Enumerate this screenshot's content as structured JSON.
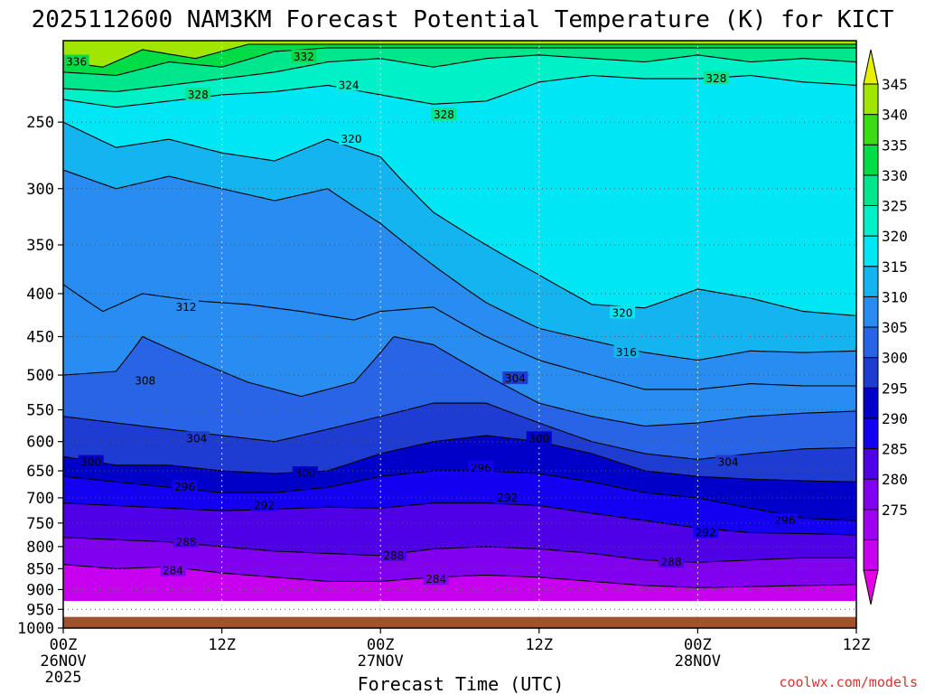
{
  "chart_data": {
    "type": "heatmap",
    "title": "2025112600 NAM3KM Forecast Potential Temperature (K) for KICT",
    "xlabel": "Forecast Time (UTC)",
    "ylabel": "",
    "credit": "coolwx.com/models",
    "x_ticks": [
      {
        "hour": 0,
        "lines": [
          "00Z",
          "26NOV",
          "2025"
        ]
      },
      {
        "hour": 12,
        "lines": [
          "12Z"
        ]
      },
      {
        "hour": 24,
        "lines": [
          "00Z",
          "27NOV"
        ]
      },
      {
        "hour": 36,
        "lines": [
          "12Z"
        ]
      },
      {
        "hour": 48,
        "lines": [
          "00Z",
          "28NOV"
        ]
      },
      {
        "hour": 60,
        "lines": [
          "12Z"
        ]
      }
    ],
    "xlim": [
      0,
      60
    ],
    "y_ticks": [
      250,
      300,
      350,
      400,
      450,
      500,
      550,
      600,
      650,
      700,
      750,
      800,
      850,
      900,
      950,
      1000
    ],
    "ylim": [
      200,
      1000
    ],
    "y_scale": "log-pressure",
    "colorbar_ticks": [
      345,
      340,
      335,
      330,
      325,
      320,
      315,
      310,
      305,
      300,
      295,
      290,
      285,
      280,
      275
    ],
    "colorbar_range": [
      270,
      350
    ],
    "colorbar_colors": [
      "#e600e6",
      "#c800f0",
      "#a000f0",
      "#8200f0",
      "#5000e6",
      "#1400f0",
      "#0000c8",
      "#1e3cd2",
      "#2864e6",
      "#288cf0",
      "#14b4f0",
      "#00e6f5",
      "#00f0c8",
      "#00e68c",
      "#00dc46",
      "#3cdc14",
      "#a0e600",
      "#e6f000"
    ],
    "contour_labels": [
      336,
      332,
      328,
      324,
      320,
      328,
      328,
      320,
      316,
      312,
      308,
      304,
      304,
      300,
      300,
      296,
      300,
      304,
      296,
      292,
      292,
      292,
      296,
      288,
      288,
      288,
      284,
      284
    ],
    "isotherms": [
      {
        "theta": 336,
        "points": [
          [
            0,
            212
          ],
          [
            3,
            215
          ],
          [
            6,
            205
          ],
          [
            10,
            210
          ],
          [
            14,
            202
          ]
        ]
      },
      {
        "theta": 332,
        "points": [
          [
            0,
            218
          ],
          [
            4,
            220
          ],
          [
            8,
            212
          ],
          [
            12,
            215
          ],
          [
            16,
            206
          ],
          [
            20,
            204
          ]
        ]
      },
      {
        "theta": 328,
        "points": [
          [
            0,
            228
          ],
          [
            4,
            230
          ],
          [
            8,
            226
          ],
          [
            12,
            222
          ],
          [
            16,
            218
          ],
          [
            20,
            212
          ],
          [
            24,
            210
          ],
          [
            28,
            215
          ],
          [
            32,
            210
          ],
          [
            36,
            208
          ],
          [
            40,
            210
          ],
          [
            44,
            212
          ],
          [
            48,
            208
          ],
          [
            52,
            212
          ],
          [
            56,
            210
          ],
          [
            60,
            212
          ]
        ]
      },
      {
        "theta": 324,
        "points": [
          [
            0,
            235
          ],
          [
            4,
            240
          ],
          [
            8,
            236
          ],
          [
            12,
            232
          ],
          [
            16,
            230
          ],
          [
            20,
            226
          ],
          [
            24,
            232
          ],
          [
            28,
            238
          ],
          [
            32,
            236
          ],
          [
            36,
            224
          ],
          [
            40,
            220
          ],
          [
            44,
            222
          ],
          [
            48,
            222
          ],
          [
            52,
            220
          ],
          [
            56,
            224
          ],
          [
            60,
            226
          ]
        ]
      },
      {
        "theta": 320,
        "points": [
          [
            0,
            250
          ],
          [
            4,
            268
          ],
          [
            8,
            262
          ],
          [
            12,
            272
          ],
          [
            16,
            278
          ],
          [
            20,
            262
          ],
          [
            24,
            275
          ],
          [
            28,
            320
          ],
          [
            32,
            350
          ],
          [
            36,
            380
          ],
          [
            40,
            412
          ],
          [
            44,
            416
          ],
          [
            48,
            395
          ],
          [
            52,
            405
          ],
          [
            56,
            420
          ],
          [
            60,
            425
          ]
        ]
      },
      {
        "theta": 316,
        "points": [
          [
            0,
            285
          ],
          [
            4,
            300
          ],
          [
            8,
            290
          ],
          [
            12,
            300
          ],
          [
            16,
            310
          ],
          [
            20,
            300
          ],
          [
            24,
            330
          ],
          [
            28,
            370
          ],
          [
            32,
            410
          ],
          [
            36,
            440
          ],
          [
            40,
            455
          ],
          [
            44,
            470
          ],
          [
            48,
            480
          ],
          [
            52,
            468
          ],
          [
            56,
            470
          ],
          [
            60,
            468
          ]
        ]
      },
      {
        "theta": 312,
        "points": [
          [
            0,
            390
          ],
          [
            3,
            420
          ],
          [
            6,
            400
          ],
          [
            10,
            408
          ],
          [
            14,
            412
          ],
          [
            18,
            420
          ],
          [
            22,
            430
          ],
          [
            24,
            420
          ],
          [
            28,
            415
          ],
          [
            32,
            450
          ],
          [
            36,
            480
          ],
          [
            40,
            500
          ],
          [
            44,
            520
          ],
          [
            48,
            520
          ],
          [
            52,
            512
          ],
          [
            56,
            515
          ],
          [
            60,
            515
          ]
        ]
      },
      {
        "theta": 308,
        "points": [
          [
            0,
            500
          ],
          [
            4,
            495
          ],
          [
            6,
            450
          ],
          [
            10,
            480
          ],
          [
            14,
            510
          ],
          [
            18,
            530
          ],
          [
            22,
            510
          ],
          [
            25,
            450
          ],
          [
            28,
            460
          ],
          [
            32,
            500
          ],
          [
            36,
            540
          ],
          [
            40,
            560
          ],
          [
            44,
            575
          ],
          [
            48,
            570
          ],
          [
            52,
            560
          ],
          [
            56,
            555
          ],
          [
            60,
            552
          ]
        ]
      },
      {
        "theta": 304,
        "points": [
          [
            0,
            560
          ],
          [
            4,
            570
          ],
          [
            8,
            580
          ],
          [
            12,
            590
          ],
          [
            16,
            600
          ],
          [
            20,
            580
          ],
          [
            24,
            560
          ],
          [
            28,
            540
          ],
          [
            32,
            540
          ],
          [
            36,
            570
          ],
          [
            40,
            600
          ],
          [
            44,
            620
          ],
          [
            48,
            630
          ],
          [
            52,
            620
          ],
          [
            56,
            612
          ],
          [
            60,
            610
          ]
        ]
      },
      {
        "theta": 300,
        "points": [
          [
            0,
            625
          ],
          [
            4,
            640
          ],
          [
            8,
            640
          ],
          [
            12,
            650
          ],
          [
            16,
            655
          ],
          [
            20,
            650
          ],
          [
            24,
            620
          ],
          [
            28,
            600
          ],
          [
            32,
            590
          ],
          [
            36,
            600
          ],
          [
            40,
            620
          ],
          [
            44,
            650
          ],
          [
            48,
            660
          ],
          [
            52,
            665
          ],
          [
            56,
            668
          ],
          [
            60,
            670
          ]
        ]
      },
      {
        "theta": 296,
        "points": [
          [
            0,
            660
          ],
          [
            4,
            670
          ],
          [
            8,
            680
          ],
          [
            12,
            690
          ],
          [
            16,
            690
          ],
          [
            20,
            680
          ],
          [
            24,
            660
          ],
          [
            28,
            650
          ],
          [
            32,
            650
          ],
          [
            36,
            655
          ],
          [
            40,
            670
          ],
          [
            44,
            690
          ],
          [
            48,
            700
          ],
          [
            52,
            720
          ],
          [
            56,
            740
          ],
          [
            60,
            745
          ]
        ]
      },
      {
        "theta": 292,
        "points": [
          [
            0,
            710
          ],
          [
            4,
            715
          ],
          [
            8,
            720
          ],
          [
            12,
            725
          ],
          [
            16,
            722
          ],
          [
            20,
            718
          ],
          [
            24,
            720
          ],
          [
            28,
            710
          ],
          [
            32,
            710
          ],
          [
            36,
            715
          ],
          [
            40,
            730
          ],
          [
            44,
            745
          ],
          [
            48,
            760
          ],
          [
            52,
            770
          ],
          [
            56,
            772
          ],
          [
            60,
            775
          ]
        ]
      },
      {
        "theta": 288,
        "points": [
          [
            0,
            780
          ],
          [
            4,
            785
          ],
          [
            8,
            790
          ],
          [
            12,
            800
          ],
          [
            16,
            810
          ],
          [
            20,
            815
          ],
          [
            24,
            820
          ],
          [
            28,
            805
          ],
          [
            32,
            800
          ],
          [
            36,
            805
          ],
          [
            40,
            815
          ],
          [
            44,
            830
          ],
          [
            48,
            835
          ],
          [
            52,
            830
          ],
          [
            56,
            825
          ],
          [
            60,
            825
          ]
        ]
      },
      {
        "theta": 284,
        "points": [
          [
            0,
            840
          ],
          [
            4,
            850
          ],
          [
            8,
            845
          ],
          [
            12,
            860
          ],
          [
            16,
            870
          ],
          [
            20,
            880
          ],
          [
            24,
            880
          ],
          [
            28,
            870
          ],
          [
            32,
            865
          ],
          [
            36,
            870
          ],
          [
            40,
            880
          ],
          [
            44,
            890
          ],
          [
            48,
            895
          ],
          [
            52,
            893
          ],
          [
            56,
            890
          ],
          [
            60,
            888
          ]
        ]
      }
    ],
    "label_positions": [
      {
        "theta": 336,
        "hour": 1,
        "p": 212
      },
      {
        "theta": 332,
        "hour": 18.2,
        "p": 209
      },
      {
        "theta": 328,
        "hour": 10.2,
        "p": 232
      },
      {
        "theta": 324,
        "hour": 21.6,
        "p": 226
      },
      {
        "theta": 320,
        "hour": 21.8,
        "p": 262
      },
      {
        "theta": 328,
        "hour": 28.8,
        "p": 245
      },
      {
        "theta": 328,
        "hour": 49.4,
        "p": 222
      },
      {
        "theta": 320,
        "hour": 42.3,
        "p": 422
      },
      {
        "theta": 316,
        "hour": 42.6,
        "p": 470
      },
      {
        "theta": 312,
        "hour": 9.3,
        "p": 415
      },
      {
        "theta": 308,
        "hour": 6.2,
        "p": 508
      },
      {
        "theta": 304,
        "hour": 34.2,
        "p": 505
      },
      {
        "theta": 304,
        "hour": 10.1,
        "p": 595
      },
      {
        "theta": 300,
        "hour": 36.0,
        "p": 595
      },
      {
        "theta": 300,
        "hour": 2.1,
        "p": 635
      },
      {
        "theta": 300,
        "hour": 18.3,
        "p": 655
      },
      {
        "theta": 296,
        "hour": 31.6,
        "p": 645
      },
      {
        "theta": 304,
        "hour": 50.3,
        "p": 635
      },
      {
        "theta": 296,
        "hour": 9.2,
        "p": 680
      },
      {
        "theta": 292,
        "hour": 15.2,
        "p": 715
      },
      {
        "theta": 292,
        "hour": 33.6,
        "p": 700
      },
      {
        "theta": 292,
        "hour": 48.6,
        "p": 770
      },
      {
        "theta": 296,
        "hour": 54.6,
        "p": 745
      },
      {
        "theta": 288,
        "hour": 9.3,
        "p": 790
      },
      {
        "theta": 288,
        "hour": 25.0,
        "p": 820
      },
      {
        "theta": 288,
        "hour": 46.0,
        "p": 835
      },
      {
        "theta": 284,
        "hour": 8.3,
        "p": 855
      },
      {
        "theta": 284,
        "hour": 28.2,
        "p": 875
      }
    ],
    "ground_level_hpa": 970
  }
}
